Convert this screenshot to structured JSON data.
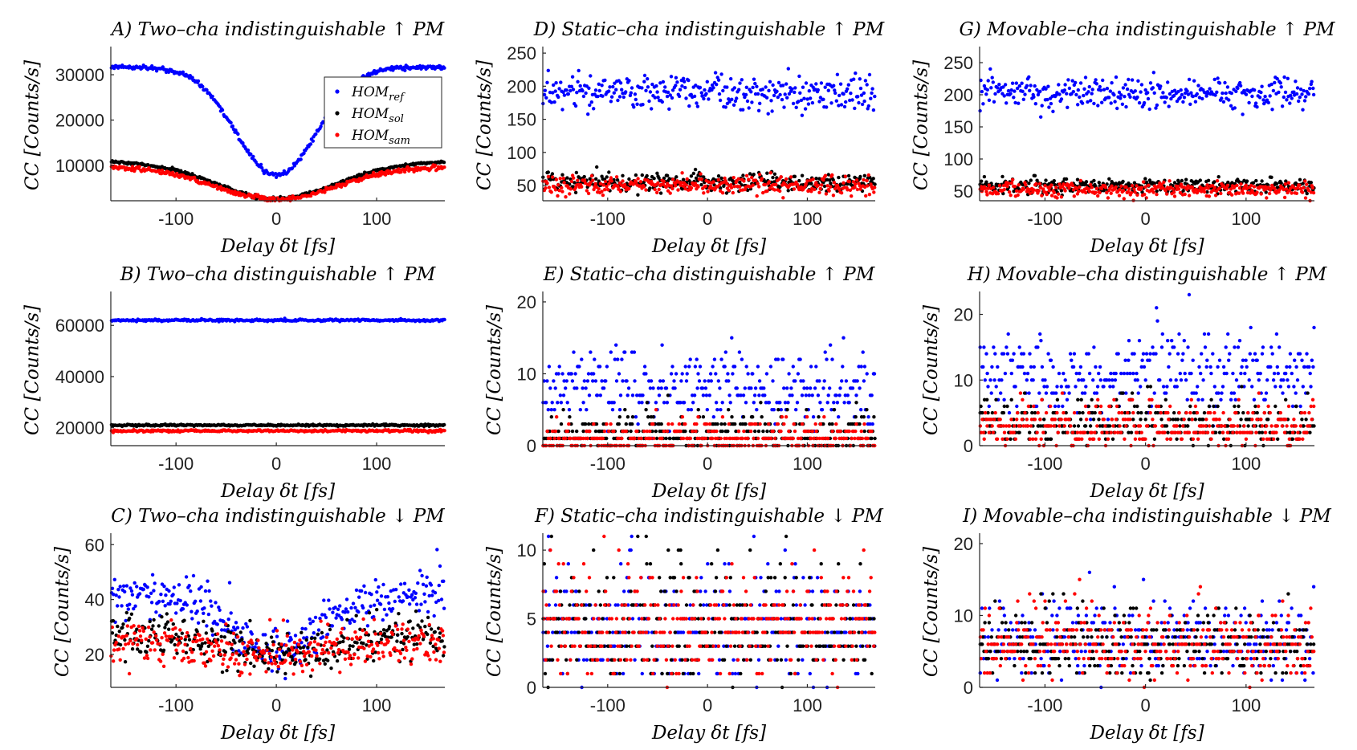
{
  "colors": {
    "ref": "#0000ff",
    "sol": "#000000",
    "sam": "#ff0000"
  },
  "chart_data": [
    {
      "id": "A",
      "type": "scatter",
      "title": "A) Two–cha indistinguishable ↑ PM",
      "xlabel": "Delay δt [fs]",
      "ylabel": "CC [Counts/s]",
      "xlim": [
        -165,
        168
      ],
      "ylim": [
        2200,
        35500
      ],
      "xticks": [
        -100,
        0,
        100
      ],
      "yticks": [
        10000,
        20000,
        30000
      ],
      "legend": {
        "position": "right",
        "labels": [
          "HOM_ref",
          "HOM_sol",
          "HOM_sam"
        ]
      },
      "series": [
        {
          "name": "HOM_ref",
          "color": "ref",
          "profile": "dip",
          "base": 31700,
          "min": 7800,
          "width": 40,
          "noise": 250
        },
        {
          "name": "HOM_sol",
          "color": "sol",
          "profile": "dip",
          "base": 10900,
          "min": 2700,
          "width": 60,
          "noise": 160
        },
        {
          "name": "HOM_sam",
          "color": "sam",
          "profile": "dip",
          "base": 9700,
          "min": 2500,
          "width": 60,
          "noise": 260
        }
      ]
    },
    {
      "id": "D",
      "type": "scatter",
      "title": "D) Static–cha indistinguishable ↑ PM",
      "xlabel": "Delay δt [fs]",
      "ylabel": "CC [Counts/s]",
      "xlim": [
        -165,
        168
      ],
      "ylim": [
        27,
        255
      ],
      "xticks": [
        -100,
        0,
        100
      ],
      "yticks": [
        50,
        100,
        150,
        200,
        250
      ],
      "series": [
        {
          "name": "HOM_ref",
          "color": "ref",
          "profile": "flat",
          "base": 190,
          "noise": 13
        },
        {
          "name": "HOM_sol",
          "color": "sol",
          "profile": "flat",
          "base": 55,
          "noise": 7
        },
        {
          "name": "HOM_sam",
          "color": "sam",
          "profile": "flat",
          "base": 50,
          "noise": 7
        }
      ]
    },
    {
      "id": "G",
      "type": "scatter",
      "title": "G) Movable–cha indistinguishable ↑ PM",
      "xlabel": "Delay δt [fs]",
      "ylabel": "CC [Counts/s]",
      "xlim": [
        -165,
        168
      ],
      "ylim": [
        35,
        270
      ],
      "xticks": [
        -100,
        0,
        100
      ],
      "yticks": [
        50,
        100,
        150,
        200,
        250
      ],
      "series": [
        {
          "name": "HOM_ref",
          "color": "ref",
          "profile": "flat",
          "base": 203,
          "noise": 12
        },
        {
          "name": "HOM_sol",
          "color": "sol",
          "profile": "flat",
          "base": 58,
          "noise": 6
        },
        {
          "name": "HOM_sam",
          "color": "sam",
          "profile": "flat",
          "base": 52,
          "noise": 6
        }
      ]
    },
    {
      "id": "B",
      "type": "scatter",
      "title": "B) Two–cha distinguishable ↑ PM",
      "xlabel": "Delay δt [fs]",
      "ylabel": "CC [Counts/s]",
      "xlim": [
        -165,
        168
      ],
      "ylim": [
        13000,
        72000
      ],
      "xticks": [
        -100,
        0,
        100
      ],
      "yticks": [
        20000,
        40000,
        60000
      ],
      "series": [
        {
          "name": "HOM_ref",
          "color": "ref",
          "profile": "flat",
          "base": 62000,
          "noise": 220
        },
        {
          "name": "HOM_sol",
          "color": "sol",
          "profile": "flat",
          "base": 21000,
          "noise": 180
        },
        {
          "name": "HOM_sam",
          "color": "sam",
          "profile": "flat",
          "base": 18800,
          "noise": 220
        }
      ]
    },
    {
      "id": "E",
      "type": "scatter",
      "title": "E) Static–cha distinguishable ↑ PM",
      "xlabel": "Delay δt [fs]",
      "ylabel": "CC [Counts/s]",
      "xlim": [
        -165,
        168
      ],
      "ylim": [
        0,
        21
      ],
      "xticks": [
        -100,
        0,
        100
      ],
      "yticks": [
        0,
        10,
        20
      ],
      "series": [
        {
          "name": "HOM_ref",
          "color": "ref",
          "profile": "poisson",
          "mean": 8
        },
        {
          "name": "HOM_sol",
          "color": "sol",
          "profile": "poisson",
          "mean": 1.8
        },
        {
          "name": "HOM_sam",
          "color": "sam",
          "profile": "poisson",
          "mean": 1.2
        }
      ]
    },
    {
      "id": "H",
      "type": "scatter",
      "title": "H) Movable–cha distinguishable ↑ PM",
      "xlabel": "Delay δt [fs]",
      "ylabel": "CC [Counts/s]",
      "xlim": [
        -165,
        168
      ],
      "ylim": [
        0,
        23
      ],
      "xticks": [
        -100,
        0,
        100
      ],
      "yticks": [
        0,
        10,
        20
      ],
      "series": [
        {
          "name": "HOM_ref",
          "color": "ref",
          "profile": "poisson",
          "mean": 11
        },
        {
          "name": "HOM_sol",
          "color": "sol",
          "profile": "poisson",
          "mean": 3.5
        },
        {
          "name": "HOM_sam",
          "color": "sam",
          "profile": "poisson",
          "mean": 3
        }
      ]
    },
    {
      "id": "C",
      "type": "scatter",
      "title": "C) Two–cha indistinguishable ↓ PM",
      "xlabel": "Delay δt [fs]",
      "ylabel": "CC [Counts/s]",
      "xlim": [
        -165,
        168
      ],
      "ylim": [
        8,
        63
      ],
      "xticks": [
        -100,
        0,
        100
      ],
      "yticks": [
        20,
        40,
        60
      ],
      "series": [
        {
          "name": "HOM_ref",
          "color": "ref",
          "profile": "dip",
          "base": 42,
          "min": 22,
          "width": 45,
          "noise": 4.5
        },
        {
          "name": "HOM_sol",
          "color": "sol",
          "profile": "dip",
          "base": 27,
          "min": 20,
          "width": 50,
          "noise": 4
        },
        {
          "name": "HOM_sam",
          "color": "sam",
          "profile": "dip",
          "base": 24,
          "min": 20,
          "width": 50,
          "noise": 4
        }
      ]
    },
    {
      "id": "F",
      "type": "scatter",
      "title": "F) Static–cha indistinguishable ↓ PM",
      "xlabel": "Delay δt [fs]",
      "ylabel": "CC [Counts/s]",
      "xlim": [
        -165,
        168
      ],
      "ylim": [
        0,
        11
      ],
      "xticks": [
        -100,
        0,
        100
      ],
      "yticks": [
        0,
        5,
        10
      ],
      "series": [
        {
          "name": "HOM_ref",
          "color": "ref",
          "profile": "poisson",
          "mean": 4.5
        },
        {
          "name": "HOM_sol",
          "color": "sol",
          "profile": "poisson",
          "mean": 4.5
        },
        {
          "name": "HOM_sam",
          "color": "sam",
          "profile": "poisson",
          "mean": 4.5
        }
      ]
    },
    {
      "id": "I",
      "type": "scatter",
      "title": "I) Movable–cha indistinguishable ↓ PM",
      "xlabel": "Delay δt [fs]",
      "ylabel": "CC [Counts/s]",
      "xlim": [
        -165,
        168
      ],
      "ylim": [
        0,
        21
      ],
      "xticks": [
        -100,
        0,
        100
      ],
      "yticks": [
        0,
        10,
        20
      ],
      "series": [
        {
          "name": "HOM_ref",
          "color": "ref",
          "profile": "poisson",
          "mean": 7
        },
        {
          "name": "HOM_sol",
          "color": "sol",
          "profile": "poisson",
          "mean": 6
        },
        {
          "name": "HOM_sam",
          "color": "sam",
          "profile": "poisson",
          "mean": 6
        }
      ]
    }
  ]
}
